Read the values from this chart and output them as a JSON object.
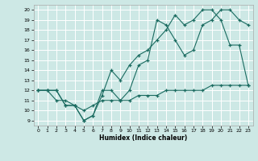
{
  "xlabel": "Humidex (Indice chaleur)",
  "bg_color": "#cde8e5",
  "grid_color": "#ffffff",
  "line_color": "#1a6b60",
  "xlim": [
    -0.5,
    23.5
  ],
  "ylim": [
    8.5,
    20.5
  ],
  "xticks": [
    0,
    1,
    2,
    3,
    4,
    5,
    6,
    7,
    8,
    9,
    10,
    11,
    12,
    13,
    14,
    15,
    16,
    17,
    18,
    19,
    20,
    21,
    22,
    23
  ],
  "yticks": [
    9,
    10,
    11,
    12,
    13,
    14,
    15,
    16,
    17,
    18,
    19,
    20
  ],
  "line1_x": [
    0,
    1,
    2,
    3,
    4,
    5,
    6,
    7,
    8,
    9,
    10,
    11,
    12,
    13,
    14,
    15,
    16,
    17,
    18,
    19,
    20,
    21,
    22,
    23
  ],
  "line1_y": [
    12,
    12,
    12,
    10.5,
    10.5,
    9,
    9.5,
    12,
    12,
    11,
    12,
    14.5,
    15,
    19,
    18.5,
    17,
    15.5,
    16,
    18.5,
    19,
    20,
    20,
    19,
    18.5
  ],
  "line2_x": [
    0,
    1,
    2,
    3,
    4,
    5,
    6,
    7,
    8,
    9,
    10,
    11,
    12,
    13,
    14,
    15,
    16,
    17,
    18,
    19,
    20,
    21,
    22,
    23
  ],
  "line2_y": [
    12,
    12,
    12,
    10.5,
    10.5,
    9,
    9.5,
    11.5,
    14,
    13,
    14.5,
    15.5,
    16,
    17,
    18,
    19.5,
    18.5,
    19,
    20,
    20,
    19,
    16.5,
    16.5,
    12.5
  ],
  "line3_x": [
    0,
    1,
    2,
    3,
    4,
    5,
    6,
    7,
    8,
    9,
    10,
    11,
    12,
    13,
    14,
    15,
    16,
    17,
    18,
    19,
    20,
    21,
    22,
    23
  ],
  "line3_y": [
    12,
    12,
    11,
    11,
    10.5,
    10,
    10.5,
    11,
    11,
    11,
    11,
    11.5,
    11.5,
    11.5,
    12,
    12,
    12,
    12,
    12,
    12.5,
    12.5,
    12.5,
    12.5,
    12.5
  ]
}
